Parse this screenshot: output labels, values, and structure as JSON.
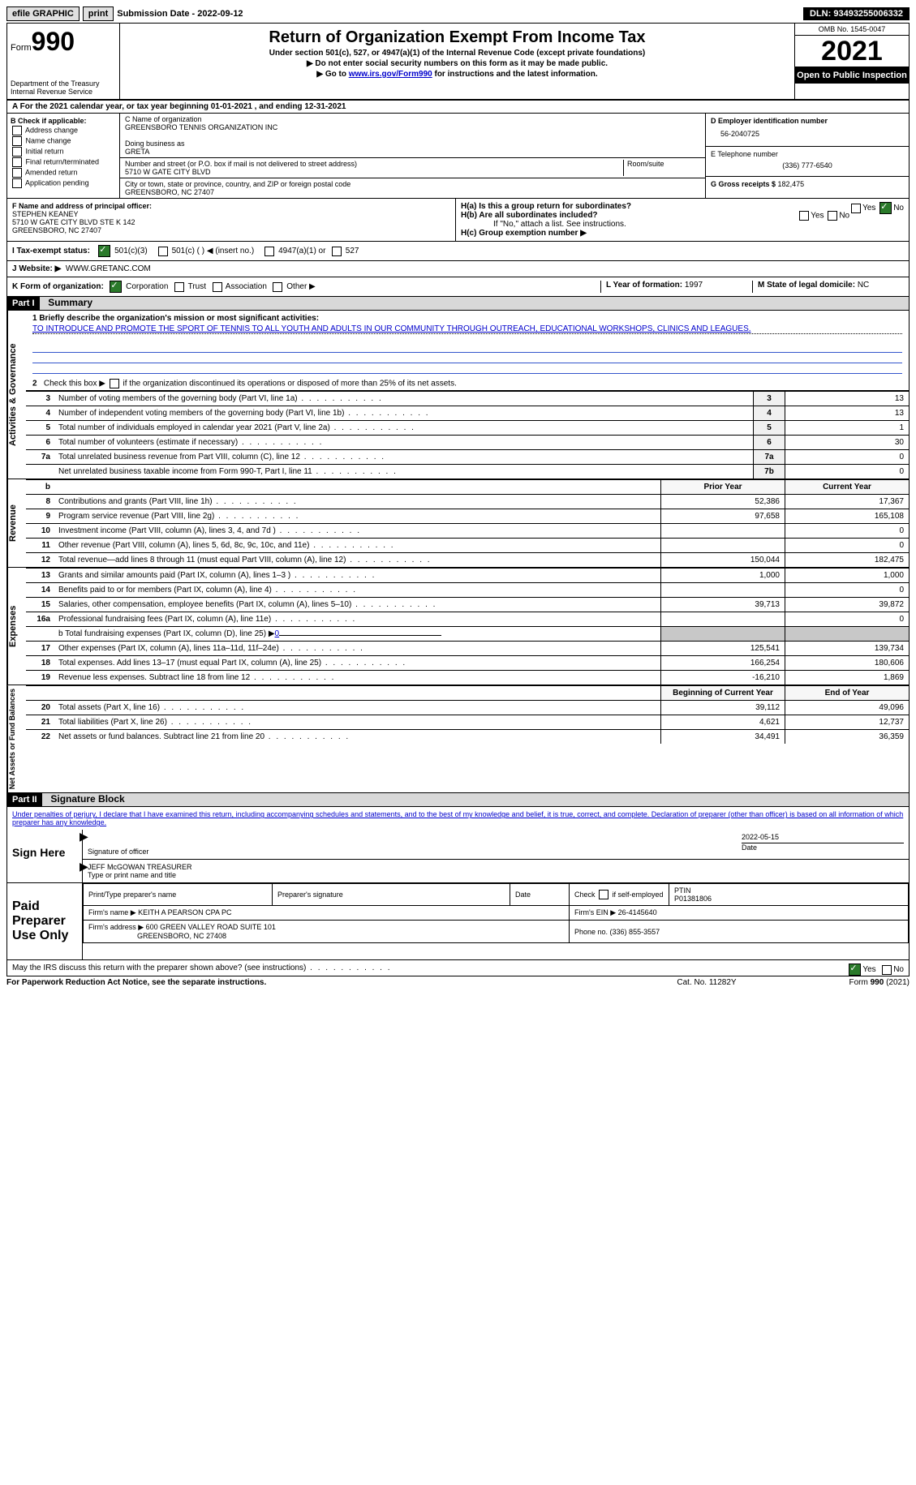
{
  "topbar": {
    "efile": "efile GRAPHIC",
    "print": "print",
    "submission_label": "Submission Date - ",
    "submission_date": "2022-09-12",
    "dln_label": "DLN: ",
    "dln": "93493255006332"
  },
  "header": {
    "form_word": "Form",
    "form_num": "990",
    "dept": "Department of the Treasury\nInternal Revenue Service",
    "title": "Return of Organization Exempt From Income Tax",
    "sub1": "Under section 501(c), 527, or 4947(a)(1) of the Internal Revenue Code (except private foundations)",
    "sub2": "▶ Do not enter social security numbers on this form as it may be made public.",
    "sub3_pre": "▶ Go to ",
    "sub3_link": "www.irs.gov/Form990",
    "sub3_post": " for instructions and the latest information.",
    "omb": "OMB No. 1545-0047",
    "year": "2021",
    "open": "Open to Public Inspection"
  },
  "line_a": "A For the 2021 calendar year, or tax year beginning 01-01-2021   , and ending 12-31-2021",
  "box_b": {
    "label": "B Check if applicable:",
    "opts": [
      "Address change",
      "Name change",
      "Initial return",
      "Final return/terminated",
      "Amended return",
      "Application pending"
    ]
  },
  "box_c": {
    "name_label": "C Name of organization",
    "name": "GREENSBORO TENNIS ORGANIZATION INC",
    "dba_label": "Doing business as",
    "dba": "GRETA",
    "street_label": "Number and street (or P.O. box if mail is not delivered to street address)",
    "room_label": "Room/suite",
    "street": "5710 W GATE CITY BLVD",
    "city_label": "City or town, state or province, country, and ZIP or foreign postal code",
    "city": "GREENSBORO, NC  27407"
  },
  "box_d": {
    "ein_label": "D Employer identification number",
    "ein": "56-2040725",
    "tel_label": "E Telephone number",
    "tel": "(336) 777-6540",
    "gross_label": "G Gross receipts $ ",
    "gross": "182,475"
  },
  "box_f": {
    "label": "F  Name and address of principal officer:",
    "name": "STEPHEN KEANEY",
    "addr1": "5710 W GATE CITY BLVD STE K 142",
    "addr2": "GREENSBORO, NC  27407"
  },
  "box_h": {
    "a": "H(a)  Is this a group return for subordinates?",
    "b": "H(b)  Are all subordinates included?",
    "b_note": "If \"No,\" attach a list. See instructions.",
    "c": "H(c)  Group exemption number ▶"
  },
  "line_i": {
    "label": "I    Tax-exempt status:",
    "o1": "501(c)(3)",
    "o2": "501(c) (  ) ◀ (insert no.)",
    "o3": "4947(a)(1) or",
    "o4": "527"
  },
  "line_j": {
    "label": "J   Website: ▶",
    "url": "WWW.GRETANC.COM"
  },
  "line_k": {
    "label": "K Form of organization:",
    "o1": "Corporation",
    "o2": "Trust",
    "o3": "Association",
    "o4": "Other ▶"
  },
  "line_l": {
    "label": "L Year of formation: ",
    "val": "1997"
  },
  "line_m": {
    "label": "M State of legal domicile: ",
    "val": "NC"
  },
  "part1": {
    "header": "Part I",
    "title": "Summary",
    "side1": "Activities & Governance",
    "side2": "Revenue",
    "side3": "Expenses",
    "side4": "Net Assets or Fund Balances",
    "line1_label": "1  Briefly describe the organization's mission or most significant activities:",
    "line1_text": "TO INTRODUCE AND PROMOTE THE SPORT OF TENNIS TO ALL YOUTH AND ADULTS IN OUR COMMUNITY THROUGH OUTREACH, EDUCATIONAL WORKSHOPS, CLINICS AND LEAGUES.",
    "line2": "2   Check this box ▶      if the organization discontinued its operations or disposed of more than 25% of its net assets.",
    "rows_single": [
      {
        "n": "3",
        "t": "Number of voting members of the governing body (Part VI, line 1a)",
        "box": "3",
        "v": "13"
      },
      {
        "n": "4",
        "t": "Number of independent voting members of the governing body (Part VI, line 1b)",
        "box": "4",
        "v": "13"
      },
      {
        "n": "5",
        "t": "Total number of individuals employed in calendar year 2021 (Part V, line 2a)",
        "box": "5",
        "v": "1"
      },
      {
        "n": "6",
        "t": "Total number of volunteers (estimate if necessary)",
        "box": "6",
        "v": "30"
      },
      {
        "n": "7a",
        "t": "Total unrelated business revenue from Part VIII, column (C), line 12",
        "box": "7a",
        "v": "0"
      },
      {
        "n": "",
        "t": "Net unrelated business taxable income from Form 990-T, Part I, line 11",
        "box": "7b",
        "v": "0"
      }
    ],
    "col_prior": "Prior Year",
    "col_current": "Current Year",
    "rev_rows": [
      {
        "n": "8",
        "t": "Contributions and grants (Part VIII, line 1h)",
        "p": "52,386",
        "c": "17,367"
      },
      {
        "n": "9",
        "t": "Program service revenue (Part VIII, line 2g)",
        "p": "97,658",
        "c": "165,108"
      },
      {
        "n": "10",
        "t": "Investment income (Part VIII, column (A), lines 3, 4, and 7d )",
        "p": "",
        "c": "0"
      },
      {
        "n": "11",
        "t": "Other revenue (Part VIII, column (A), lines 5, 6d, 8c, 9c, 10c, and 11e)",
        "p": "",
        "c": "0"
      },
      {
        "n": "12",
        "t": "Total revenue—add lines 8 through 11 (must equal Part VIII, column (A), line 12)",
        "p": "150,044",
        "c": "182,475"
      }
    ],
    "exp_rows": [
      {
        "n": "13",
        "t": "Grants and similar amounts paid (Part IX, column (A), lines 1–3 )",
        "p": "1,000",
        "c": "1,000"
      },
      {
        "n": "14",
        "t": "Benefits paid to or for members (Part IX, column (A), line 4)",
        "p": "",
        "c": "0"
      },
      {
        "n": "15",
        "t": "Salaries, other compensation, employee benefits (Part IX, column (A), lines 5–10)",
        "p": "39,713",
        "c": "39,872"
      },
      {
        "n": "16a",
        "t": "Professional fundraising fees (Part IX, column (A), line 11e)",
        "p": "",
        "c": "0"
      }
    ],
    "line_b": "b  Total fundraising expenses (Part IX, column (D), line 25) ▶",
    "line_b_val": "0",
    "exp_rows2": [
      {
        "n": "17",
        "t": "Other expenses (Part IX, column (A), lines 11a–11d, 11f–24e)",
        "p": "125,541",
        "c": "139,734"
      },
      {
        "n": "18",
        "t": "Total expenses. Add lines 13–17 (must equal Part IX, column (A), line 25)",
        "p": "166,254",
        "c": "180,606"
      },
      {
        "n": "19",
        "t": "Revenue less expenses. Subtract line 18 from line 12",
        "p": "-16,210",
        "c": "1,869"
      }
    ],
    "col_begin": "Beginning of Current Year",
    "col_end": "End of Year",
    "net_rows": [
      {
        "n": "20",
        "t": "Total assets (Part X, line 16)",
        "p": "39,112",
        "c": "49,096"
      },
      {
        "n": "21",
        "t": "Total liabilities (Part X, line 26)",
        "p": "4,621",
        "c": "12,737"
      },
      {
        "n": "22",
        "t": "Net assets or fund balances. Subtract line 21 from line 20",
        "p": "34,491",
        "c": "36,359"
      }
    ]
  },
  "part2": {
    "header": "Part II",
    "title": "Signature Block",
    "penalty": "Under penalties of perjury, I declare that I have examined this return, including accompanying schedules and statements, and to the best of my knowledge and belief, it is true, correct, and complete. Declaration of preparer (other than officer) is based on all information of which preparer has any knowledge.",
    "sign_here": "Sign Here",
    "sig_officer": "Signature of officer",
    "sig_date": "2022-05-15",
    "date_label": "Date",
    "officer_name": "JEFF McGOWAN  TREASURER",
    "officer_sub": "Type or print name and title",
    "paid_label": "Paid Preparer Use Only",
    "h1": "Print/Type preparer's name",
    "h2": "Preparer's signature",
    "h3": "Date",
    "h4": "Check       if self-employed",
    "h5": "PTIN",
    "ptin": "P01381806",
    "firm_name_label": "Firm's name    ▶ ",
    "firm_name": "KEITH A PEARSON CPA PC",
    "firm_ein_label": "Firm's EIN ▶ ",
    "firm_ein": "26-4145640",
    "firm_addr_label": "Firm's address ▶ ",
    "firm_addr1": "600 GREEN VALLEY ROAD SUITE 101",
    "firm_addr2": "GREENSBORO, NC  27408",
    "phone_label": "Phone no. ",
    "phone": "(336) 855-3557",
    "discuss": "May the IRS discuss this return with the preparer shown above? (see instructions)"
  },
  "footer": {
    "left": "For Paperwork Reduction Act Notice, see the separate instructions.",
    "center": "Cat. No. 11282Y",
    "right": "Form 990 (2021)"
  }
}
